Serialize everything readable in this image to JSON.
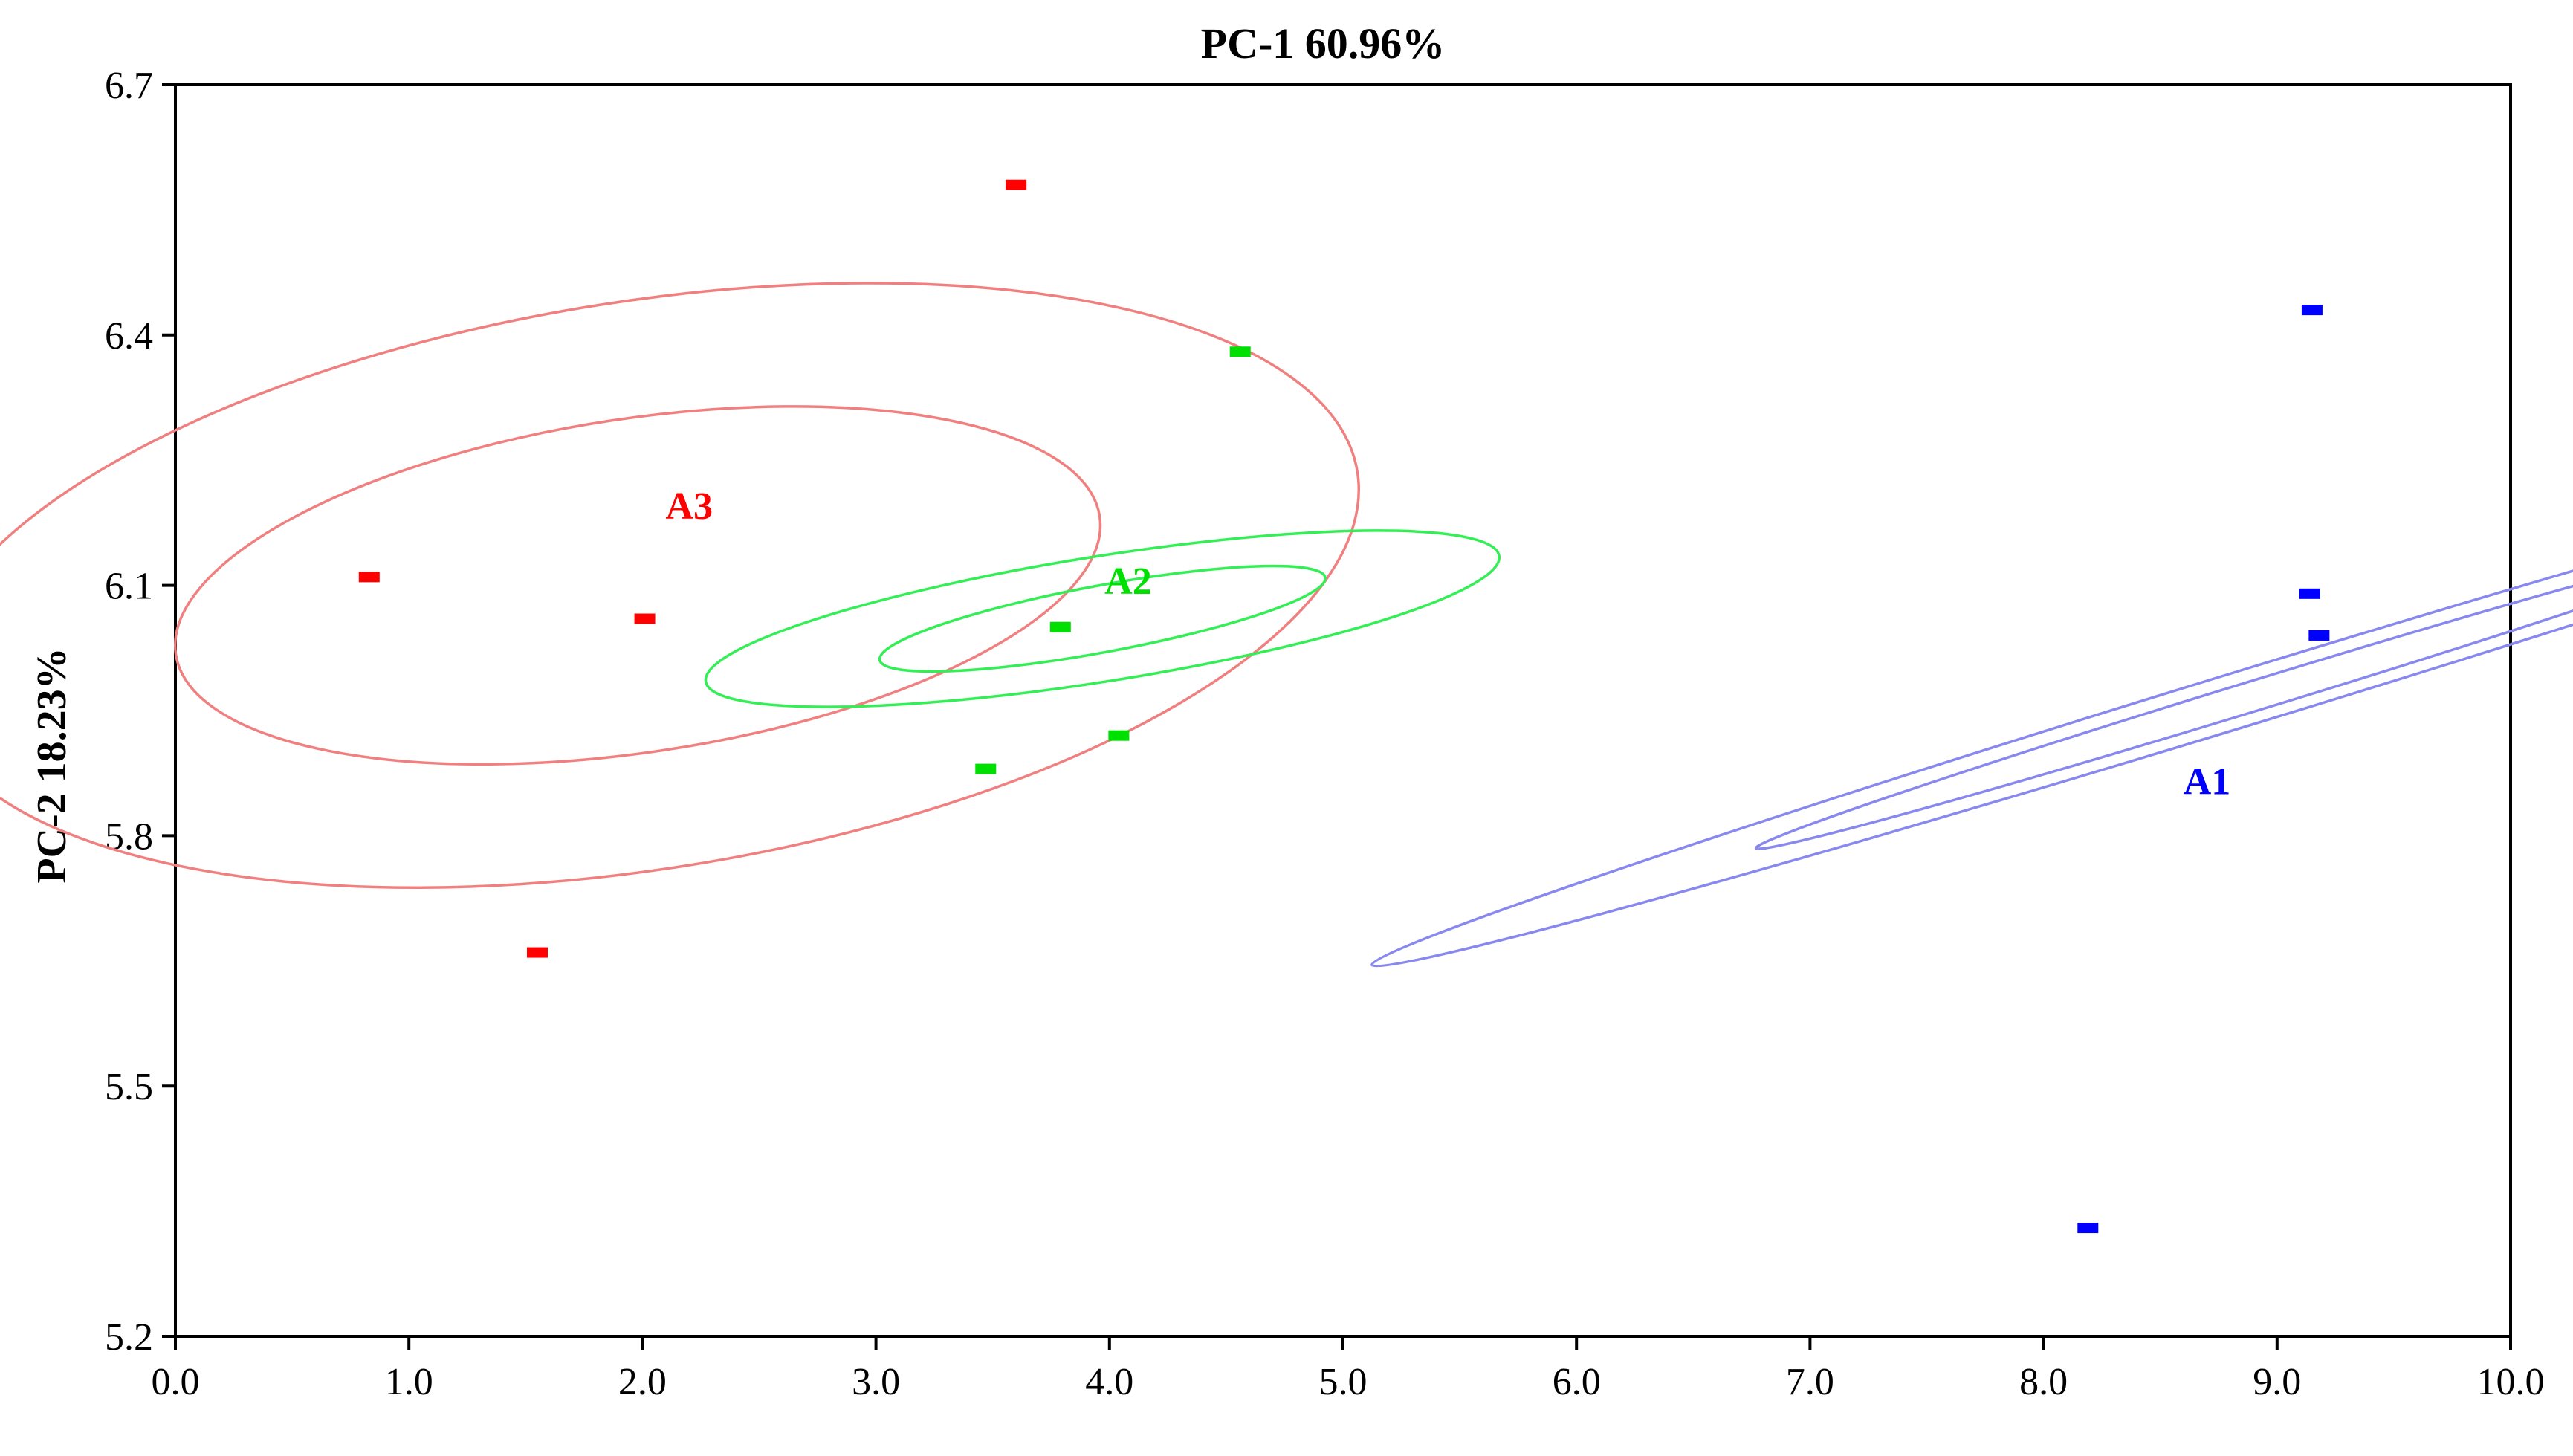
{
  "chart_data": {
    "type": "scatter",
    "title": "PC-1 60.96%",
    "xlabel": "",
    "ylabel": "PC-2 18.23%",
    "xlim": [
      0.0,
      10.0
    ],
    "ylim": [
      5.2,
      6.7
    ],
    "x_ticks": [
      "0.0",
      "1.0",
      "2.0",
      "3.0",
      "4.0",
      "5.0",
      "6.0",
      "7.0",
      "8.0",
      "9.0",
      "10.0"
    ],
    "y_ticks": [
      "5.2",
      "5.5",
      "5.8",
      "6.1",
      "6.4",
      "6.7"
    ],
    "grid": false,
    "legend": "none",
    "series": [
      {
        "label": "A3",
        "color": "#ff0000",
        "ellipse_color": "#f08080",
        "label_at": [
          2.2,
          6.18
        ],
        "points": [
          [
            0.83,
            6.11
          ],
          [
            2.01,
            6.06
          ],
          [
            3.6,
            6.58
          ],
          [
            1.55,
            5.66
          ]
        ],
        "ellipses": [
          {
            "center": [
              1.98,
              6.1
            ],
            "semi_major": 2.0,
            "semi_minor": 0.2,
            "angle_deg": 8.5
          },
          {
            "center": [
              2.0,
              6.1
            ],
            "semi_major": 3.1,
            "semi_minor": 0.34,
            "angle_deg": 9.0
          }
        ]
      },
      {
        "label": "A2",
        "color": "#00e000",
        "ellipse_color": "#33ee55",
        "label_at": [
          4.08,
          6.09
        ],
        "points": [
          [
            3.47,
            5.88
          ],
          [
            3.79,
            6.05
          ],
          [
            4.04,
            5.92
          ],
          [
            4.56,
            6.38
          ]
        ],
        "ellipses": [
          {
            "center": [
              3.97,
              6.06
            ],
            "semi_major": 0.97,
            "semi_minor": 0.04,
            "angle_deg": 10.5
          },
          {
            "center": [
              3.97,
              6.06
            ],
            "semi_major": 1.72,
            "semi_minor": 0.075,
            "angle_deg": 9.0
          }
        ]
      },
      {
        "label": "A1",
        "color": "#0000ff",
        "ellipse_color": "#8888ee",
        "label_at": [
          8.7,
          5.85
        ],
        "points": [
          [
            9.15,
            6.43
          ],
          [
            9.14,
            6.09
          ],
          [
            9.18,
            6.04
          ],
          [
            8.19,
            5.33
          ]
        ],
        "ellipses": [
          {
            "center": [
              8.93,
              5.97
            ],
            "semi_major": 2.26,
            "semi_minor": 0.018,
            "angle_deg": 17.0
          },
          {
            "center": [
              8.92,
              5.97
            ],
            "semi_major": 3.97,
            "semi_minor": 0.033,
            "angle_deg": 17.0
          }
        ]
      }
    ]
  }
}
